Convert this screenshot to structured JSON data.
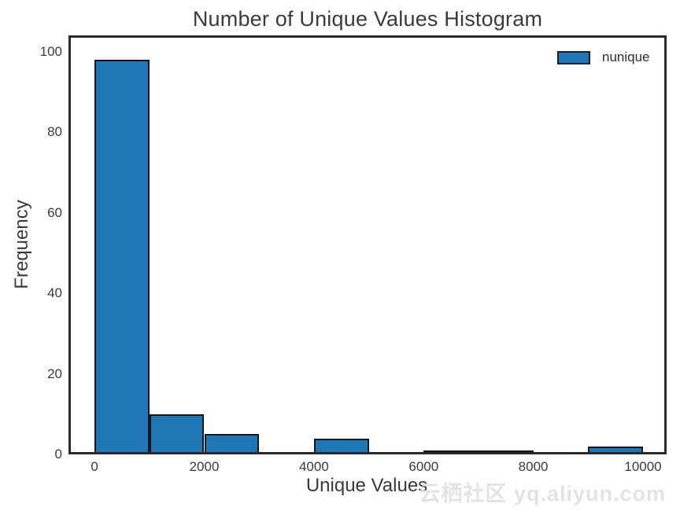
{
  "title": "Number of Unique Values Histogram",
  "axes": {
    "x_label": "Unique Values",
    "y_label": "Frequency"
  },
  "legend": {
    "label": "nunique",
    "swatch_color": "#2077b5"
  },
  "watermark": "云栖社区 yq.aliyun.com",
  "colors": {
    "bar_fill": "#2077b5",
    "bar_edge": "#14161f",
    "spine": "#2b2b2b",
    "text": "#3a3a3a",
    "watermark": "#e3e3e3"
  },
  "chart_data": {
    "type": "bar",
    "subtype": "histogram",
    "title": "Number of Unique Values Histogram",
    "xlabel": "Unique Values",
    "ylabel": "Frequency",
    "series": [
      {
        "name": "nunique",
        "bin_edges": [
          0,
          1000,
          2000,
          3000,
          4000,
          5000,
          6000,
          7000,
          8000,
          9000,
          10000
        ],
        "counts": [
          98,
          10,
          5,
          0,
          4,
          0,
          1,
          1,
          0,
          2
        ]
      }
    ],
    "x_tick_values": [
      0,
      2000,
      4000,
      6000,
      8000,
      10000
    ],
    "y_tick_values": [
      0,
      20,
      40,
      60,
      80,
      100
    ],
    "xlim": [
      -475,
      10430
    ],
    "ylim": [
      0,
      104
    ],
    "grid": false,
    "legend_position": "upper right",
    "background": "#ffffff"
  }
}
